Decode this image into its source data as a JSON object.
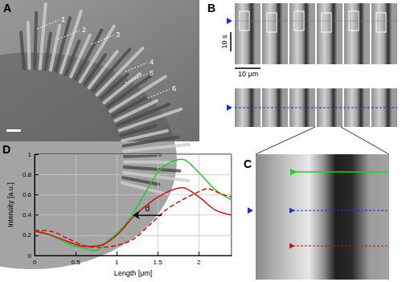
{
  "panels": [
    {
      "label": "A",
      "annotations": [
        "1",
        "2",
        "3",
        "4",
        "5",
        "6"
      ]
    },
    {
      "label": "B",
      "scale_bars": [
        "10 s",
        "10 μm"
      ]
    },
    {
      "label": "C"
    },
    {
      "label": "D"
    }
  ],
  "chart_data": {
    "type": "line",
    "x_label": "Length [μm]",
    "y_label": "Intensity [a.u.]",
    "xlim": [
      0,
      2.4
    ],
    "xticks": [
      0,
      0.5,
      1,
      1.5,
      2
    ],
    "ylim": [
      0,
      1
    ],
    "yticks": [
      0,
      0.2,
      0.4,
      0.6,
      0.8,
      1
    ],
    "grid": true,
    "series": [
      {
        "color": "#22cc22",
        "line_style": "solid",
        "x": [
          0,
          0.2,
          0.4,
          0.6,
          0.75,
          0.9,
          1.1,
          1.3,
          1.5,
          1.65,
          1.8,
          2.0,
          2.2,
          2.4
        ],
        "values": [
          0.25,
          0.2,
          0.12,
          0.07,
          0.05,
          0.15,
          0.3,
          0.55,
          0.82,
          0.92,
          0.95,
          0.82,
          0.65,
          0.55
        ]
      },
      {
        "color": "#cc1111",
        "line_style": "solid",
        "x": [
          0,
          0.2,
          0.4,
          0.6,
          0.8,
          1.0,
          1.2,
          1.4,
          1.6,
          1.8,
          2.0,
          2.2,
          2.4
        ],
        "values": [
          0.24,
          0.2,
          0.14,
          0.09,
          0.1,
          0.2,
          0.38,
          0.52,
          0.62,
          0.67,
          0.58,
          0.45,
          0.4
        ]
      },
      {
        "color": "#cc1111",
        "line_style": "dashed",
        "x": [
          0,
          0.2,
          0.4,
          0.6,
          0.8,
          1.0,
          1.2,
          1.4,
          1.6,
          1.8,
          2.0,
          2.1,
          2.3,
          2.4
        ],
        "values": [
          0.25,
          0.24,
          0.17,
          0.1,
          0.08,
          0.1,
          0.16,
          0.3,
          0.45,
          0.55,
          0.63,
          0.66,
          0.6,
          0.58
        ]
      }
    ],
    "annotations": [
      {
        "text": "d",
        "arrow_from": [
          1.55,
          0.4
        ],
        "arrow_to": [
          1.2,
          0.4
        ]
      }
    ]
  }
}
